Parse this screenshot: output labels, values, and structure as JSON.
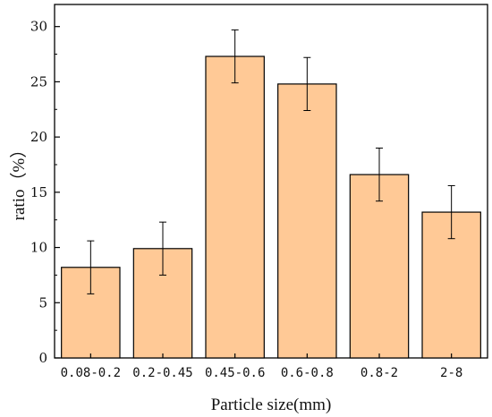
{
  "chart_data": {
    "type": "bar",
    "categories": [
      "0.08-0.2",
      "0.2-0.45",
      "0.45-0.6",
      "0.6-0.8",
      "0.8-2",
      "2-8"
    ],
    "values": [
      8.2,
      9.9,
      27.3,
      24.8,
      16.6,
      13.2
    ],
    "error": [
      2.4,
      2.4,
      2.4,
      2.4,
      2.4,
      2.4
    ],
    "xlabel": "Particle size(mm)",
    "ylabel": "ratio（%）",
    "ylim": [
      0,
      32
    ],
    "yticks": [
      0,
      5,
      10,
      15,
      20,
      25,
      30
    ],
    "grid": false,
    "bar_color": "#FFC996",
    "edge_color": "#000000"
  }
}
